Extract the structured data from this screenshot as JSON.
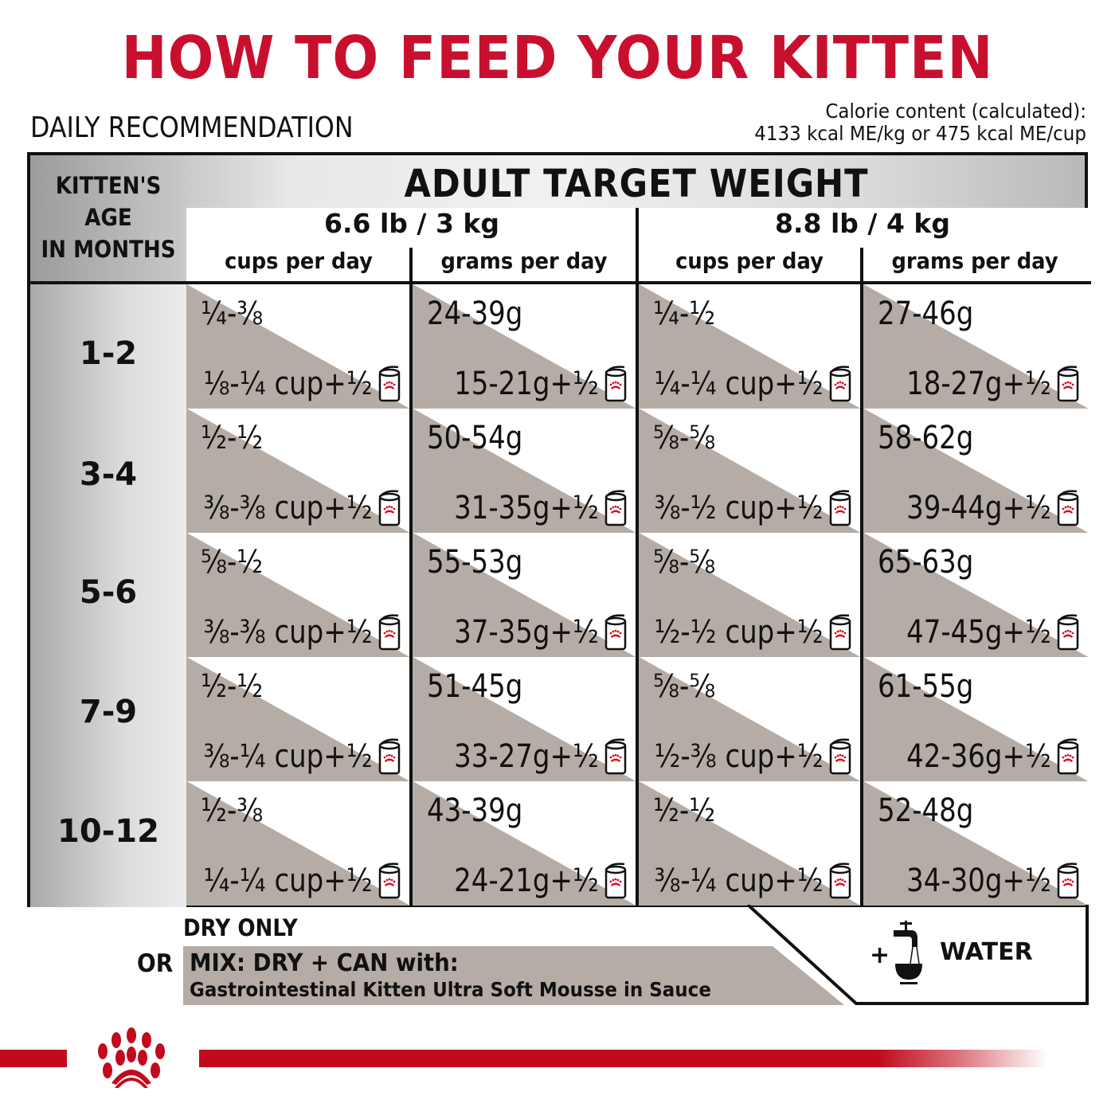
{
  "header": {
    "title": "HOW TO FEED YOUR KITTEN",
    "subtitle": "DAILY RECOMMENDATION",
    "calorie_line1": "Calorie content (calculated):",
    "calorie_line2": "4133 kcal ME/kg or 475 kcal ME/cup"
  },
  "colors": {
    "brand_red": "#c8102e",
    "band_grey": "#b5aca5",
    "border": "#111111"
  },
  "table": {
    "age_header": [
      "KITTEN'S",
      "AGE",
      "IN MONTHS"
    ],
    "group_header": "ADULT TARGET WEIGHT",
    "weights": [
      {
        "label": "6.6 lb / 3 kg",
        "col1": "cups per day",
        "col2": "grams per day"
      },
      {
        "label": "8.8 lb / 4 kg",
        "col1": "cups per day",
        "col2": "grams per day"
      }
    ],
    "rows": [
      {
        "age": "1-2",
        "w1_cups_dry": "¼-⅜",
        "w1_cups_mix": "⅛-¼ cup+½",
        "w1_grams_dry": "24-39g",
        "w1_grams_mix": "15-21g+½",
        "w2_cups_dry": "¼-½",
        "w2_cups_mix": "¼-¼ cup+½",
        "w2_grams_dry": "27-46g",
        "w2_grams_mix": "18-27g+½"
      },
      {
        "age": "3-4",
        "w1_cups_dry": "½-½",
        "w1_cups_mix": "⅜-⅜ cup+½",
        "w1_grams_dry": "50-54g",
        "w1_grams_mix": "31-35g+½",
        "w2_cups_dry": "⅝-⅝",
        "w2_cups_mix": "⅜-½ cup+½",
        "w2_grams_dry": "58-62g",
        "w2_grams_mix": "39-44g+½"
      },
      {
        "age": "5-6",
        "w1_cups_dry": "⅝-½",
        "w1_cups_mix": "⅜-⅜ cup+½",
        "w1_grams_dry": "55-53g",
        "w1_grams_mix": "37-35g+½",
        "w2_cups_dry": "⅝-⅝",
        "w2_cups_mix": "½-½ cup+½",
        "w2_grams_dry": "65-63g",
        "w2_grams_mix": "47-45g+½"
      },
      {
        "age": "7-9",
        "w1_cups_dry": "½-½",
        "w1_cups_mix": "⅜-¼ cup+½",
        "w1_grams_dry": "51-45g",
        "w1_grams_mix": "33-27g+½",
        "w2_cups_dry": "⅝-⅝",
        "w2_cups_mix": "½-⅜ cup+½",
        "w2_grams_dry": "61-55g",
        "w2_grams_mix": "42-36g+½"
      },
      {
        "age": "10-12",
        "w1_cups_dry": "½-⅜",
        "w1_cups_mix": "¼-¼ cup+½",
        "w1_grams_dry": "43-39g",
        "w1_grams_mix": "24-21g+½",
        "w2_cups_dry": "½-½",
        "w2_cups_mix": "⅜-¼ cup+½",
        "w2_grams_dry": "52-48g",
        "w2_grams_mix": "34-30g+½"
      }
    ],
    "can_icon": "wet-food-can-icon"
  },
  "footer": {
    "dry_only": "DRY ONLY",
    "or": "OR",
    "mix_line1": "MIX: DRY + CAN with:",
    "mix_line2": "Gastrointestinal Kitten Ultra Soft Mousse in Sauce",
    "plus": "+",
    "water": "WATER",
    "water_icon": "water-tap-bowl-icon",
    "logo_icon": "royal-canin-crown-logo-icon"
  }
}
